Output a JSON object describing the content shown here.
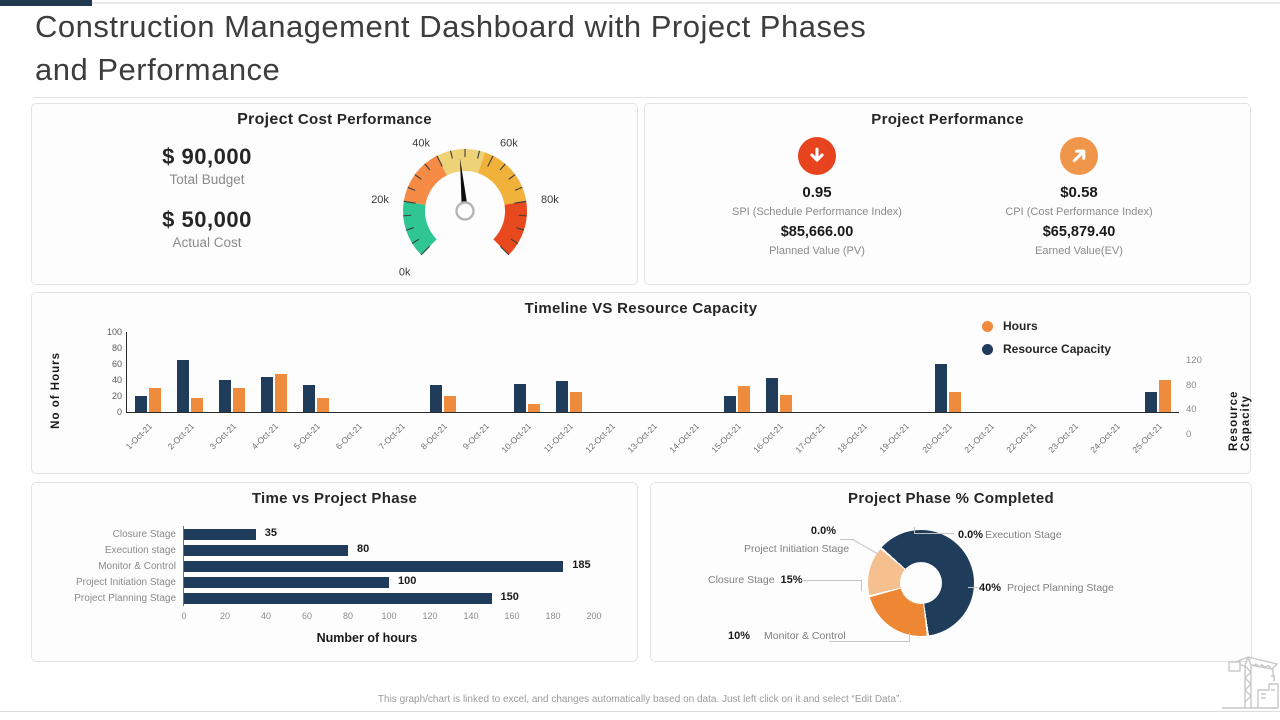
{
  "page": {
    "title_line1": "Construction Management Dashboard with Project Phases",
    "title_line2": "and Performance",
    "footer": "This graph/chart is linked to excel, and changes automatically based on data. Just left click on it and select “Edit Data”."
  },
  "cost_panel": {
    "title_main": "Project",
    "title_rest": "Cost Performance",
    "budget_value": "$ 90,000",
    "budget_label": "Total Budget",
    "actual_value": "$ 50,000",
    "actual_label": "Actual Cost"
  },
  "performance_panel": {
    "title": "Project Performance",
    "metrics": [
      {
        "icon": "arrow-down",
        "icon_color": "#e8431f",
        "value": "0.95",
        "label": "SPI (Schedule Performance Index)",
        "value2": "$85,666.00",
        "label2": "Planned Value (PV)"
      },
      {
        "icon": "arrow-up-right",
        "icon_color": "#f0964b",
        "value": "$0.58",
        "label": "CPI (Cost Performance Index)",
        "value2": "$65,879.40",
        "label2": "Earned Value(EV)"
      }
    ]
  },
  "chart_data": [
    {
      "id": "cost_gauge",
      "type": "gauge",
      "title": "Project Cost Performance",
      "min": 0,
      "max": 100,
      "needle_value": 48,
      "tick_labels": [
        {
          "value": 0,
          "label": "0k"
        },
        {
          "value": 20,
          "label": "20k"
        },
        {
          "value": 40,
          "label": "40k"
        },
        {
          "value": 60,
          "label": "60k"
        },
        {
          "value": 80,
          "label": "80k"
        }
      ],
      "segments": [
        {
          "from": 0,
          "to": 20,
          "color": "#2fc693"
        },
        {
          "from": 20,
          "to": 40,
          "color": "#f58b45"
        },
        {
          "from": 40,
          "to": 57,
          "color": "#eed277"
        },
        {
          "from": 57,
          "to": 80,
          "color": "#f1b23c"
        },
        {
          "from": 80,
          "to": 100,
          "color": "#e8481d"
        }
      ]
    },
    {
      "id": "timeline",
      "type": "bar",
      "title": "Timeline VS Resource Capacity",
      "ylabel_left": "No of Hours",
      "ylabel_right": "Resource Capacity",
      "ylim_left": [
        0,
        100
      ],
      "yticks_left": [
        0,
        20,
        40,
        60,
        80,
        100
      ],
      "yticks_right": [
        120,
        80,
        40,
        0
      ],
      "legend_position": "top-right",
      "grid": false,
      "categories": [
        "1-Oct-21",
        "2-Oct-21",
        "3-Oct-21",
        "4-Oct-21",
        "5-Oct-21",
        "6-Oct-21",
        "7-Oct-21",
        "8-Oct-21",
        "9-Oct-21",
        "10-Oct-21",
        "11-Oct-21",
        "12-Oct-21",
        "13-Oct-21",
        "14-Oct-21",
        "15-Oct-21",
        "16-Oct-21",
        "17-Oct-21",
        "18-Oct-21",
        "19-Oct-21",
        "20-Oct-21",
        "21-Oct-21",
        "22-Oct-21",
        "23-Oct-21",
        "24-Oct-21",
        "25-Oct-21"
      ],
      "series": [
        {
          "name": "Resource Capacity",
          "color": "#1f3c5b",
          "values": [
            20,
            65,
            40,
            44,
            34,
            0,
            0,
            34,
            0,
            35,
            39,
            0,
            0,
            0,
            20,
            43,
            0,
            0,
            0,
            60,
            0,
            0,
            0,
            0,
            25
          ]
        },
        {
          "name": "Hours",
          "color": "#ee8b3c",
          "values": [
            30,
            18,
            30,
            48,
            17,
            0,
            0,
            20,
            0,
            10,
            25,
            0,
            0,
            0,
            32,
            21,
            0,
            0,
            0,
            25,
            0,
            0,
            0,
            0,
            40
          ]
        }
      ],
      "legend": [
        {
          "name": "Hours",
          "color": "#ee8b3c"
        },
        {
          "name": "Resource Capacity",
          "color": "#1f3c5b"
        }
      ]
    },
    {
      "id": "time_phase",
      "type": "bar",
      "orientation": "horizontal",
      "title": "Time vs Project Phase",
      "xlabel": "Number of hours",
      "xlim": [
        0,
        200
      ],
      "xticks": [
        0,
        20,
        40,
        60,
        80,
        100,
        120,
        140,
        160,
        180,
        200
      ],
      "bar_color": "#1f3c5b",
      "categories": [
        "Closure Stage",
        "Execution stage",
        "Monitor & Control",
        "Project Initiation Stage",
        "Project Planning Stage"
      ],
      "values": [
        35,
        80,
        185,
        100,
        150
      ]
    },
    {
      "id": "phase_pct",
      "type": "pie",
      "title": "Project Phase % Completed",
      "donut": true,
      "rotation_deg": -49,
      "slices": [
        {
          "label": "Project Planning Stage",
          "pct_label": "40%",
          "value": 40,
          "color": "#1f3c5b"
        },
        {
          "label": "Closure Stage",
          "pct_label": "15%",
          "value": 15,
          "color": "#ed8733"
        },
        {
          "label": "Monitor & Control",
          "pct_label": "10%",
          "value": 10,
          "color": "#f5c08d"
        },
        {
          "label": "Project Initiation Stage",
          "pct_label": "0.0%",
          "value": 0,
          "color": "#1f3c5b"
        },
        {
          "label": "Execution Stage",
          "pct_label": "0.0%",
          "value": 0,
          "color": "#1f3c5b"
        }
      ]
    }
  ]
}
